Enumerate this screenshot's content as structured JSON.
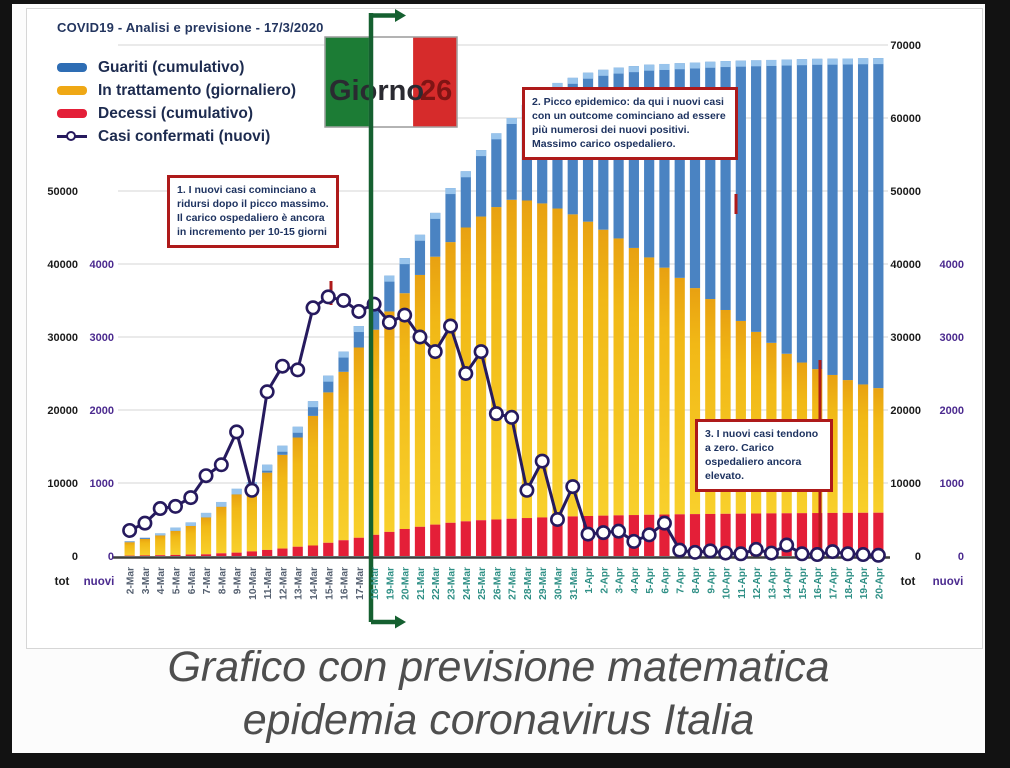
{
  "header": {
    "title": "COVID19 - Analisi e previsione - 17/3/2020"
  },
  "legend": {
    "items": [
      {
        "label": "Guariti (cumulativo)",
        "color": "#2e6db4",
        "marker": "bar"
      },
      {
        "label": "In trattamento (giornaliero)",
        "color": "#efa815",
        "marker": "bar"
      },
      {
        "label": "Decessi (cumulativo)",
        "color": "#e41f38",
        "marker": "bar"
      },
      {
        "label": "Casi confermati (nuovi)",
        "color": "#261a5e",
        "marker": "line-circle"
      }
    ]
  },
  "day_marker": {
    "label": "Giorno",
    "day": "26"
  },
  "annotations": [
    {
      "id": 1,
      "text": "1. I nuovi casi cominciano a ridursi dopo il picco massimo. Il carico ospedaliero è ancora in incremento per 10-15 giorni"
    },
    {
      "id": 2,
      "text": "2. Picco epidemico: da qui i nuovi casi con un outcome cominciano ad essere più numerosi dei nuovi positivi. Massimo carico ospedaliero."
    },
    {
      "id": 3,
      "text": "3. I nuovi casi tendono a zero. Carico ospedaliero ancora elevato."
    }
  ],
  "axes": {
    "left": {
      "tot_label": "tot",
      "nuovi_label": "nuovi",
      "tot_ticks": [
        0,
        10000,
        20000,
        30000,
        40000,
        50000
      ],
      "nuovi_ticks": [
        0,
        1000,
        2000,
        3000,
        4000
      ]
    },
    "right": {
      "tot_label": "tot",
      "nuovi_label": "nuovi",
      "tot_ticks": [
        0,
        10000,
        20000,
        30000,
        40000,
        50000,
        60000,
        70000
      ],
      "nuovi_ticks": [
        0,
        1000,
        2000,
        3000,
        4000
      ]
    },
    "nuovi_to_tot_scale": 10
  },
  "caption": {
    "line1": "Grafico con previsione matematica",
    "line2": "epidemia coronavirus Italia"
  },
  "chart_data": {
    "type": "bar",
    "subtype": "stacked-bars-plus-line",
    "title": "COVID19 - Analisi e previsione - 17/3/2020",
    "xlabel": "",
    "ylabel_left": "tot / nuovi",
    "ylabel_right": "tot / nuovi",
    "legend_position": "top-left",
    "grid": "horizontal every 10000 (tot scale)",
    "axis_ranges": {
      "tot": [
        0,
        73000
      ],
      "nuovi": [
        0,
        7300
      ]
    },
    "forecast_start_category": "18-Mar",
    "vertical_marker": {
      "x_category": "18-Mar",
      "label": "Giorno 26"
    },
    "stack_order_bottom_to_top": [
      "Decessi (cumulativo)",
      "In trattamento (giornaliero)",
      "Guariti (cumulativo)"
    ],
    "categories": [
      "2-Mar",
      "3-Mar",
      "4-Mar",
      "5-Mar",
      "6-Mar",
      "7-Mar",
      "8-Mar",
      "9-Mar",
      "10-Mar",
      "11-Mar",
      "12-Mar",
      "13-Mar",
      "14-Mar",
      "15-Mar",
      "16-Mar",
      "17-Mar",
      "18-Mar",
      "19-Mar",
      "20-Mar",
      "21-Mar",
      "22-Mar",
      "23-Mar",
      "24-Mar",
      "25-Mar",
      "26-Mar",
      "27-Mar",
      "28-Mar",
      "29-Mar",
      "30-Mar",
      "31-Mar",
      "1-Apr",
      "2-Apr",
      "3-Apr",
      "4-Apr",
      "5-Apr",
      "6-Apr",
      "7-Apr",
      "8-Apr",
      "9-Apr",
      "10-Apr",
      "11-Apr",
      "12-Apr",
      "13-Apr",
      "14-Apr",
      "15-Apr",
      "16-Apr",
      "17-Apr",
      "18-Apr",
      "19-Apr",
      "20-Apr"
    ],
    "series": [
      {
        "name": "Decessi (cumulativo)",
        "type": "bar",
        "axis": "tot",
        "color": "#e41f38",
        "values": [
          50,
          80,
          110,
          150,
          200,
          230,
          370,
          460,
          630,
          830,
          1020,
          1270,
          1440,
          1810,
          2160,
          2500,
          2900,
          3300,
          3700,
          4000,
          4300,
          4550,
          4750,
          4900,
          5000,
          5100,
          5200,
          5280,
          5350,
          5420,
          5480,
          5530,
          5570,
          5610,
          5650,
          5680,
          5710,
          5740,
          5760,
          5780,
          5800,
          5820,
          5840,
          5855,
          5870,
          5885,
          5900,
          5910,
          5920,
          5930
        ]
      },
      {
        "name": "In trattamento (giornaliero)",
        "type": "bar",
        "axis": "tot",
        "color": "#f3bc1b",
        "values": [
          1840,
          2260,
          2710,
          3300,
          3920,
          5060,
          6390,
          7990,
          8510,
          10590,
          12840,
          14960,
          17750,
          20600,
          23070,
          26060,
          28100,
          30200,
          32300,
          34500,
          36700,
          38450,
          40250,
          41600,
          42800,
          43700,
          43500,
          43020,
          42250,
          41380,
          40320,
          39170,
          37930,
          36590,
          35250,
          33820,
          32390,
          30960,
          29440,
          27920,
          26400,
          24880,
          23360,
          21850,
          20630,
          19720,
          18900,
          18190,
          17580,
          17070
        ]
      },
      {
        "name": "Guariti (cumulativo)",
        "type": "bar",
        "axis": "tot",
        "color": "#4a83c2",
        "values": [
          110,
          160,
          280,
          450,
          480,
          610,
          640,
          750,
          960,
          1080,
          1240,
          1470,
          2010,
          2290,
          2770,
          2940,
          4000,
          4900,
          4800,
          5500,
          6000,
          7400,
          7700,
          9100,
          10100,
          11200,
          13100,
          15000,
          17200,
          18700,
          20400,
          21900,
          23400,
          24900,
          26400,
          27900,
          29400,
          30900,
          32500,
          34100,
          35650,
          37200,
          38750,
          40300,
          41550,
          42500,
          43320,
          44050,
          44680,
          45200
        ]
      },
      {
        "name": "Casi confermati (nuovi)",
        "type": "line",
        "axis": "nuovi",
        "color": "#261a5e",
        "values": [
          350,
          450,
          650,
          680,
          800,
          1100,
          1250,
          1700,
          900,
          2250,
          2600,
          2550,
          3400,
          3550,
          3500,
          3350,
          3450,
          3200,
          3300,
          3000,
          2800,
          3150,
          2500,
          2800,
          1950,
          1900,
          900,
          1300,
          500,
          950,
          300,
          320,
          340,
          200,
          290,
          450,
          80,
          50,
          70,
          40,
          30,
          90,
          40,
          150,
          30,
          20,
          60,
          30,
          20,
          10
        ]
      }
    ]
  }
}
